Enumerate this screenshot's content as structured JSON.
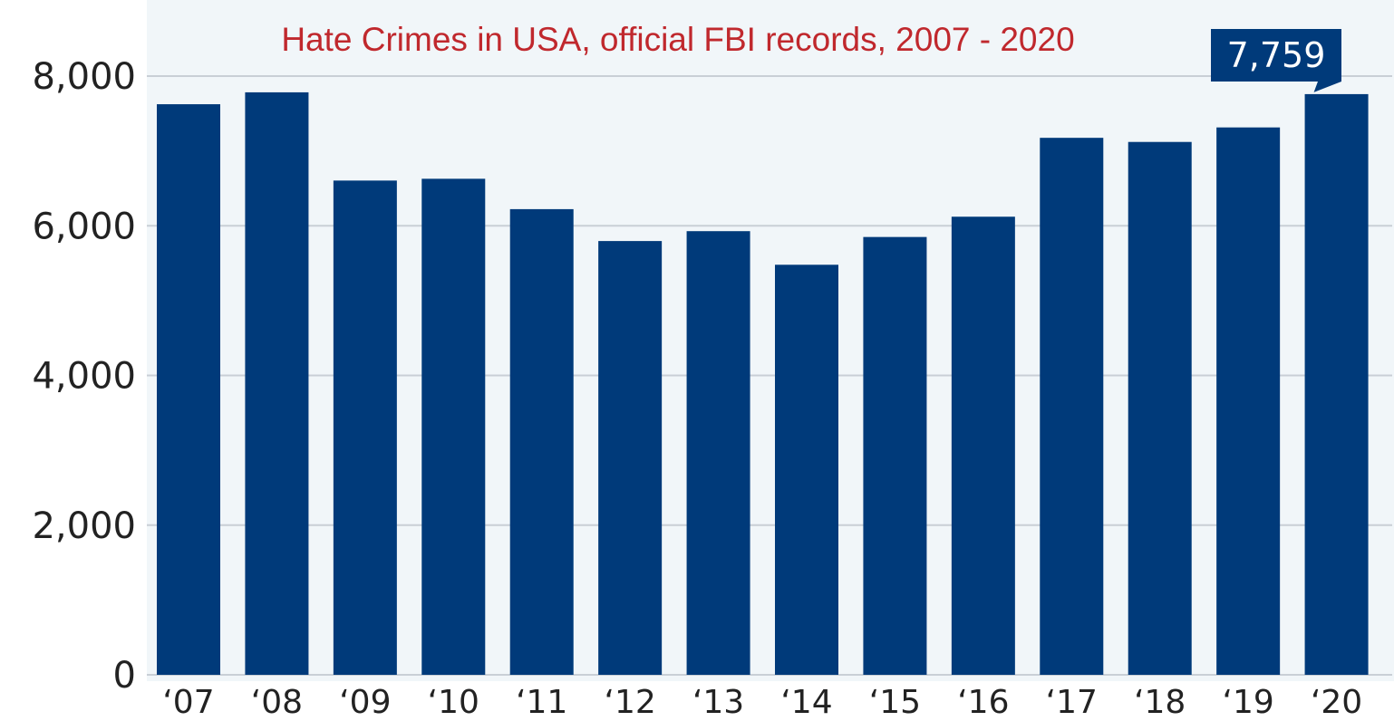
{
  "chart_data": {
    "type": "bar",
    "title": "Hate Crimes in USA, official FBI records, 2007 - 2020",
    "xlabel": "",
    "ylabel": "",
    "categories": [
      "‘07",
      "‘08",
      "‘09",
      "‘10",
      "‘11",
      "‘12",
      "‘13",
      "‘14",
      "‘15",
      "‘16",
      "‘17",
      "‘18",
      "‘19",
      "‘20"
    ],
    "values": [
      7624,
      7783,
      6604,
      6628,
      6222,
      5796,
      5928,
      5479,
      5850,
      6121,
      7175,
      7120,
      7314,
      7759
    ],
    "ylim": [
      0,
      8000
    ],
    "yticks": [
      0,
      2000,
      4000,
      6000,
      8000
    ],
    "ytick_labels": [
      "0",
      "2,000",
      "4,000",
      "6,000",
      "8,000"
    ],
    "grid": true,
    "legend": "none",
    "callout": {
      "category_index": 13,
      "label": "7,759"
    }
  },
  "colors": {
    "bar": "#003a7a",
    "plot_background": "#f1f6f9",
    "gridline": "#c9cfd6",
    "title": "#c0282d",
    "callout_background": "#003a7a"
  }
}
